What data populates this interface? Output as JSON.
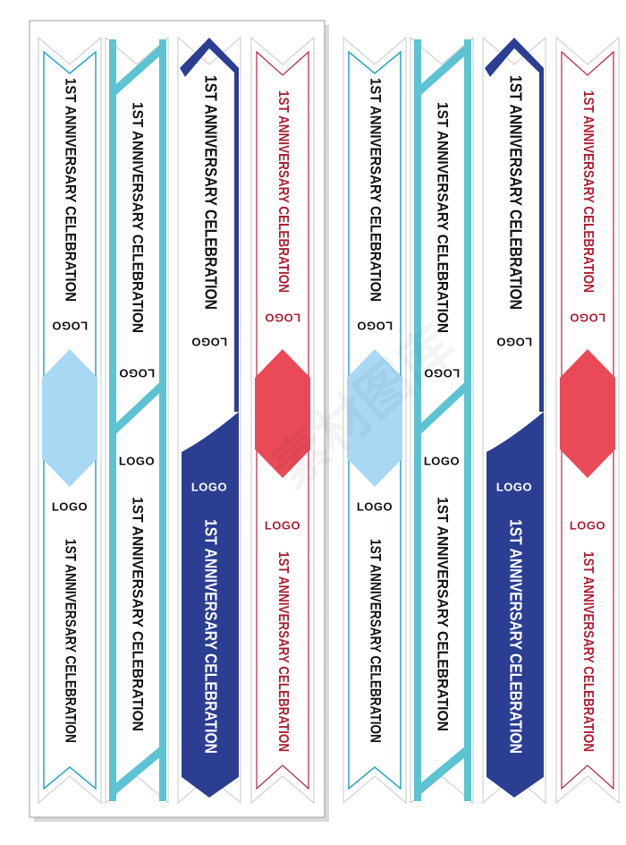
{
  "banner_text": "1ST ANNIVERSARY CELEBRATION",
  "logo_text": "LOGO",
  "watermark_text": "素材图库",
  "colors": {
    "light_blue_stroke": "#2aa6c9",
    "light_blue_fill": "#a9d8f4",
    "teal_stroke": "#5cc3d2",
    "navy": "#2c3e92",
    "red_stroke": "#c0213a",
    "red_fill": "#ea4a58",
    "text_dark": "#111111",
    "text_red": "#b01e30"
  },
  "sets": [
    {
      "name": "left-set",
      "banners": [
        {
          "style": "light-blue",
          "top_text": "1ST ANNIVERSARY CELEBRATION",
          "bottom_text": "1ST ANNIVERSARY CELEBRATION",
          "top_logo": "LOGO",
          "bottom_logo": "LOGO"
        },
        {
          "style": "teal",
          "top_text": "1ST ANNIVERSARY CELEBRATION",
          "bottom_text": "1ST ANNIVERSARY CELEBRATION",
          "top_logo": "LOGO",
          "bottom_logo": "LOGO"
        },
        {
          "style": "navy",
          "top_text": "1ST ANNIVERSARY CELEBRATION",
          "bottom_text": "1ST ANNIVERSARY CELEBRATION",
          "top_logo": "LOGO",
          "bottom_logo": "LOGO"
        },
        {
          "style": "red",
          "top_text": "1ST ANNIVERSARY CELEBRATION",
          "bottom_text": "1ST ANNIVERSARY CELEBRATION",
          "top_logo": "LOGO",
          "bottom_logo": "LOGO"
        }
      ]
    },
    {
      "name": "right-set",
      "banners": [
        {
          "style": "light-blue",
          "top_text": "1ST ANNIVERSARY CELEBRATION",
          "bottom_text": "1ST ANNIVERSARY CELEBRATION",
          "top_logo": "LOGO",
          "bottom_logo": "LOGO"
        },
        {
          "style": "teal",
          "top_text": "1ST ANNIVERSARY CELEBRATION",
          "bottom_text": "1ST ANNIVERSARY CELEBRATION",
          "top_logo": "LOGO",
          "bottom_logo": "LOGO"
        },
        {
          "style": "navy",
          "top_text": "1ST ANNIVERSARY CELEBRATION",
          "bottom_text": "1ST ANNIVERSARY CELEBRATION",
          "top_logo": "LOGO",
          "bottom_logo": "LOGO"
        },
        {
          "style": "red",
          "top_text": "1ST ANNIVERSARY CELEBRATION",
          "bottom_text": "1ST ANNIVERSARY CELEBRATION",
          "top_logo": "LOGO",
          "bottom_logo": "LOGO"
        }
      ]
    }
  ]
}
